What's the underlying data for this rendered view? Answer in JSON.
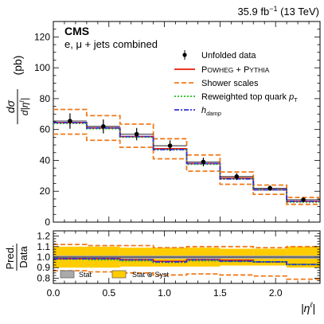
{
  "header": {
    "lumi_text": "35.9 fb",
    "lumi_sup": "−1",
    "energy_text": " (13 TeV)"
  },
  "labels": {
    "experiment": "CMS",
    "channel": "e, μ + jets combined",
    "ylabel_top": "dσ",
    "ylabel_bottom": "d|η",
    "ylabel_bottom_sup": "ℓ",
    "ylabel_bottom_close": "|",
    "ylabel_unit": "(pb)",
    "ratio_ylabel_top": "Pred.",
    "ratio_ylabel_bottom": "Data",
    "xlabel": "|η",
    "xlabel_sup": "ℓ",
    "xlabel_close": "|"
  },
  "legend": {
    "unfolded": "Unfolded data",
    "powheg_a": "P",
    "powheg_b": "OWHEG",
    "powheg_c": " + P",
    "powheg_d": "YTHIA",
    "shower": "Shower scales",
    "reweighted": "Reweighted top quark ",
    "reweighted_sym": "p",
    "reweighted_sub": "T",
    "hdamp_sym": "h",
    "hdamp_sub": "damp",
    "ratio_stat": "Stat",
    "ratio_syst": "Stat ⊕ Syst"
  },
  "colors": {
    "powheg": "#e8180c",
    "shower": "#f07a1a",
    "reweighted": "#1fbf1f",
    "hdamp": "#3030d8",
    "stat_band": "#aaaaaa",
    "syst_band": "#ffcc00"
  },
  "chart_data": [
    {
      "type": "step",
      "panel": "main",
      "bin_edges": [
        0.0,
        0.3,
        0.6,
        0.9,
        1.2,
        1.5,
        1.8,
        2.1,
        2.4
      ],
      "xlim": [
        0.0,
        2.4
      ],
      "ylim": [
        0,
        130
      ],
      "xticks": [
        0.0,
        0.5,
        1.0,
        1.5,
        2.0
      ],
      "yticks": [
        0,
        20,
        40,
        60,
        80,
        100,
        120
      ],
      "data": {
        "x": [
          0.15,
          0.45,
          0.75,
          1.05,
          1.35,
          1.65,
          1.95,
          2.25
        ],
        "y": [
          65.5,
          62.0,
          57.0,
          49.5,
          39.0,
          29.5,
          22.0,
          14.5
        ],
        "err": [
          5.0,
          4.5,
          4.0,
          3.5,
          2.8,
          2.2,
          1.7,
          1.2
        ]
      },
      "series": [
        {
          "name": "POWHEG + PYTHIA",
          "values": [
            64.5,
            61.0,
            55.5,
            47.5,
            38.0,
            28.5,
            21.0,
            13.5
          ]
        },
        {
          "name": "Shower scales up",
          "values": [
            73.0,
            69.0,
            63.5,
            54.0,
            43.5,
            32.5,
            24.0,
            16.0
          ]
        },
        {
          "name": "Shower scales down",
          "values": [
            57.0,
            53.0,
            48.5,
            41.0,
            33.0,
            24.5,
            18.0,
            11.5
          ]
        },
        {
          "name": "Reweighted top quark pT",
          "values": [
            64.0,
            60.5,
            55.0,
            47.0,
            37.5,
            28.0,
            21.0,
            13.0
          ]
        },
        {
          "name": "hdamp",
          "values": [
            64.5,
            61.0,
            55.5,
            47.0,
            38.0,
            28.0,
            21.0,
            13.5
          ]
        }
      ]
    },
    {
      "type": "ratio",
      "panel": "ratio",
      "bin_edges": [
        0.0,
        0.3,
        0.6,
        0.9,
        1.2,
        1.5,
        1.8,
        2.1,
        2.4
      ],
      "ylim": [
        0.75,
        1.25
      ],
      "yticks": [
        0.8,
        0.9,
        1.0,
        1.1,
        1.2
      ],
      "stat_band": {
        "low": 0.985,
        "high": 1.015
      },
      "syst_band": {
        "low": [
          0.9,
          0.9,
          0.91,
          0.91,
          0.91,
          0.92,
          0.92,
          0.9
        ],
        "high": [
          1.1,
          1.1,
          1.09,
          1.09,
          1.09,
          1.08,
          1.08,
          1.1
        ]
      },
      "series": [
        {
          "name": "POWHEG + PYTHIA",
          "values": [
            0.985,
            0.985,
            0.975,
            0.96,
            0.975,
            0.97,
            0.955,
            0.93
          ]
        },
        {
          "name": "Shower scales up",
          "values": [
            1.12,
            1.11,
            1.11,
            1.09,
            1.1,
            1.1,
            1.09,
            1.1
          ]
        },
        {
          "name": "Shower scales down",
          "values": [
            0.87,
            0.86,
            0.85,
            0.83,
            0.84,
            0.83,
            0.82,
            0.79
          ]
        },
        {
          "name": "Reweighted top quark pT",
          "values": [
            0.98,
            0.975,
            0.965,
            0.95,
            0.965,
            0.96,
            0.955,
            0.93
          ]
        },
        {
          "name": "hdamp",
          "values": [
            0.985,
            0.985,
            0.975,
            0.955,
            0.975,
            0.96,
            0.955,
            0.93
          ]
        }
      ]
    }
  ]
}
